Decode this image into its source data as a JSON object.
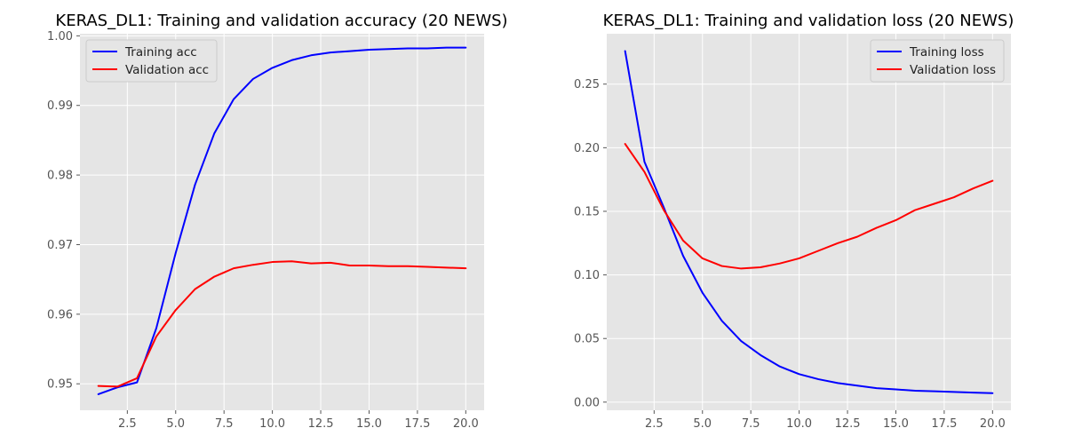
{
  "chart_data": [
    {
      "type": "line",
      "title": "KERAS_DL1: Training and validation accuracy (20 NEWS)",
      "xlabel": "",
      "ylabel": "",
      "xlim": [
        0.05,
        20.95
      ],
      "ylim": [
        0.9462,
        1.0003
      ],
      "xticks": [
        2.5,
        5.0,
        7.5,
        10.0,
        12.5,
        15.0,
        17.5,
        20.0
      ],
      "xtick_labels": [
        "2.5",
        "5.0",
        "7.5",
        "10.0",
        "12.5",
        "15.0",
        "17.5",
        "20.0"
      ],
      "yticks": [
        0.95,
        0.96,
        0.97,
        0.98,
        0.99,
        1.0
      ],
      "ytick_labels": [
        "0.95",
        "0.96",
        "0.97",
        "0.98",
        "0.99",
        "1.00"
      ],
      "grid": true,
      "legend_position": "top-left",
      "x": [
        1,
        2,
        3,
        4,
        5,
        6,
        7,
        8,
        9,
        10,
        11,
        12,
        13,
        14,
        15,
        16,
        17,
        18,
        19,
        20
      ],
      "series": [
        {
          "name": "Training acc",
          "color": "#0000ff",
          "values": [
            0.9485,
            0.9495,
            0.9502,
            0.958,
            0.9688,
            0.9786,
            0.986,
            0.9909,
            0.9938,
            0.9954,
            0.9965,
            0.9972,
            0.9976,
            0.9978,
            0.998,
            0.9981,
            0.9982,
            0.9982,
            0.9983,
            0.9983
          ]
        },
        {
          "name": "Validation acc",
          "color": "#ff0000",
          "values": [
            0.9497,
            0.9496,
            0.9508,
            0.9568,
            0.9606,
            0.9636,
            0.9654,
            0.9666,
            0.9671,
            0.9675,
            0.9676,
            0.9673,
            0.9674,
            0.967,
            0.967,
            0.9669,
            0.9669,
            0.9668,
            0.9667,
            0.9666
          ]
        }
      ]
    },
    {
      "type": "line",
      "title": "KERAS_DL1: Training and validation loss (20 NEWS)",
      "xlabel": "",
      "ylabel": "",
      "xlim": [
        0.05,
        20.95
      ],
      "ylim": [
        -0.0064,
        0.2896
      ],
      "xticks": [
        2.5,
        5.0,
        7.5,
        10.0,
        12.5,
        15.0,
        17.5,
        20.0
      ],
      "xtick_labels": [
        "2.5",
        "5.0",
        "7.5",
        "10.0",
        "12.5",
        "15.0",
        "17.5",
        "20.0"
      ],
      "yticks": [
        0.0,
        0.05,
        0.1,
        0.15,
        0.2,
        0.25
      ],
      "ytick_labels": [
        "0.00",
        "0.05",
        "0.10",
        "0.15",
        "0.20",
        "0.25"
      ],
      "grid": true,
      "legend_position": "top-right",
      "x": [
        1,
        2,
        3,
        4,
        5,
        6,
        7,
        8,
        9,
        10,
        11,
        12,
        13,
        14,
        15,
        16,
        17,
        18,
        19,
        20
      ],
      "series": [
        {
          "name": "Training loss",
          "color": "#0000ff",
          "values": [
            0.276,
            0.189,
            0.153,
            0.115,
            0.086,
            0.064,
            0.048,
            0.037,
            0.028,
            0.022,
            0.018,
            0.015,
            0.013,
            0.011,
            0.01,
            0.009,
            0.0085,
            0.008,
            0.0075,
            0.007
          ]
        },
        {
          "name": "Validation loss",
          "color": "#ff0000",
          "values": [
            0.203,
            0.181,
            0.151,
            0.127,
            0.113,
            0.107,
            0.105,
            0.106,
            0.109,
            0.113,
            0.119,
            0.125,
            0.13,
            0.137,
            0.143,
            0.151,
            0.156,
            0.161,
            0.168,
            0.174
          ]
        }
      ]
    }
  ]
}
